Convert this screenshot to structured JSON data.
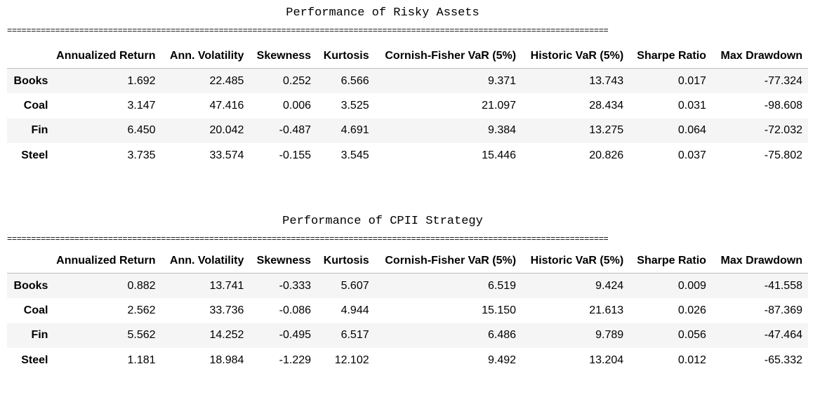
{
  "columns": [
    "",
    "Annualized Return",
    "Ann. Volatility",
    "Skewness",
    "Kurtosis",
    "Cornish-Fisher VaR (5%)",
    "Historic VaR (5%)",
    "Sharpe Ratio",
    "Max Drawdown"
  ],
  "rule": "=============================================================================================================================",
  "sections": [
    {
      "title": "Performance of Risky Assets",
      "rows": [
        {
          "label": "Books",
          "values": [
            "1.692",
            "22.485",
            "0.252",
            "6.566",
            "9.371",
            "13.743",
            "0.017",
            "-77.324"
          ]
        },
        {
          "label": "Coal",
          "values": [
            "3.147",
            "47.416",
            "0.006",
            "3.525",
            "21.097",
            "28.434",
            "0.031",
            "-98.608"
          ]
        },
        {
          "label": "Fin",
          "values": [
            "6.450",
            "20.042",
            "-0.487",
            "4.691",
            "9.384",
            "13.275",
            "0.064",
            "-72.032"
          ]
        },
        {
          "label": "Steel",
          "values": [
            "3.735",
            "33.574",
            "-0.155",
            "3.545",
            "15.446",
            "20.826",
            "0.037",
            "-75.802"
          ]
        }
      ]
    },
    {
      "title": "Performance of CPII Strategy",
      "rows": [
        {
          "label": "Books",
          "values": [
            "0.882",
            "13.741",
            "-0.333",
            "5.607",
            "6.519",
            "9.424",
            "0.009",
            "-41.558"
          ]
        },
        {
          "label": "Coal",
          "values": [
            "2.562",
            "33.736",
            "-0.086",
            "4.944",
            "15.150",
            "21.613",
            "0.026",
            "-87.369"
          ]
        },
        {
          "label": "Fin",
          "values": [
            "5.562",
            "14.252",
            "-0.495",
            "6.517",
            "6.486",
            "9.789",
            "0.056",
            "-47.464"
          ]
        },
        {
          "label": "Steel",
          "values": [
            "1.181",
            "18.984",
            "-1.229",
            "12.102",
            "9.492",
            "13.204",
            "0.012",
            "-65.332"
          ]
        }
      ]
    }
  ]
}
